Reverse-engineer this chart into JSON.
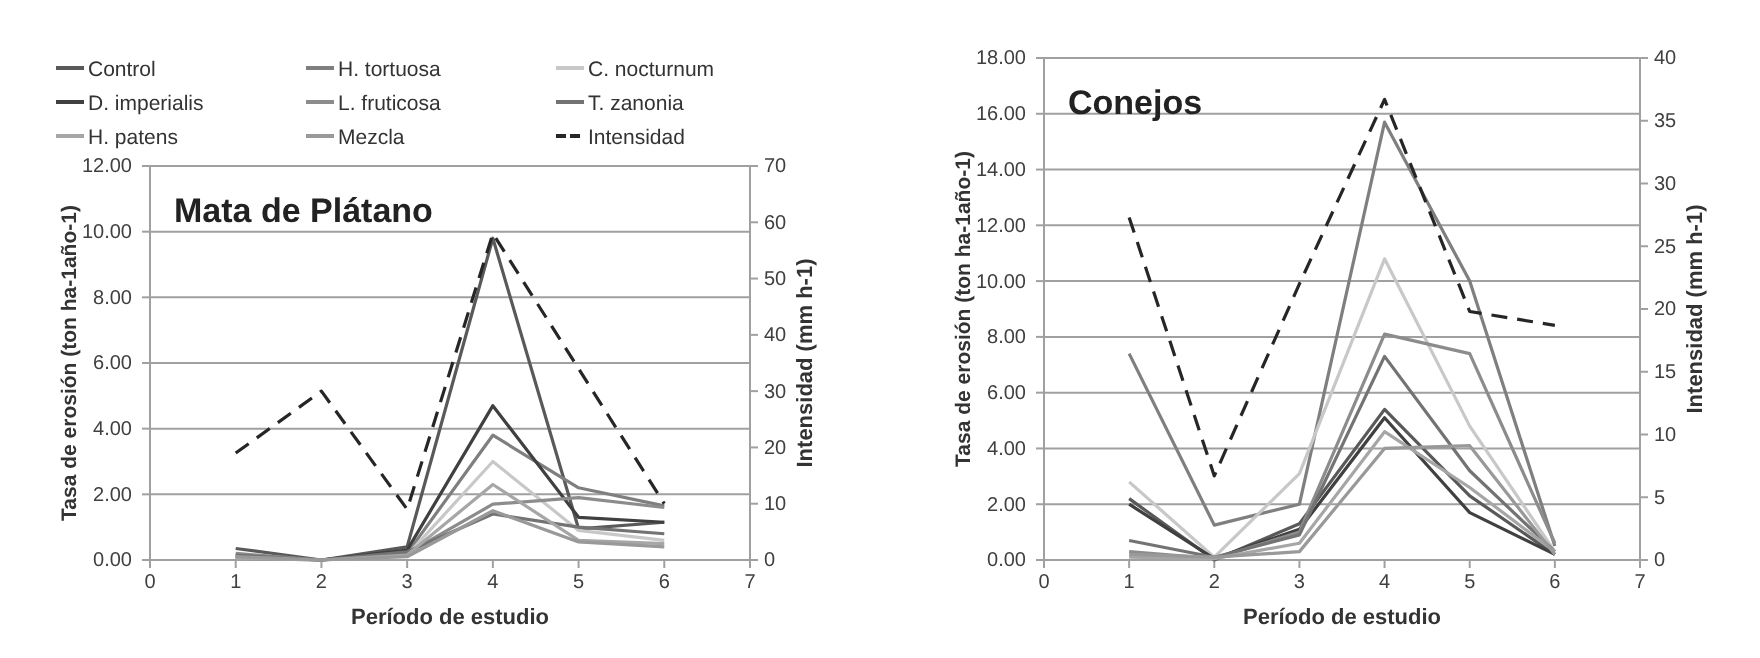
{
  "chart_data": [
    {
      "type": "line",
      "title": "Mata de Plátano",
      "xlabel": "Período de estudio",
      "ylabel": "Tasa de erosión (ton ha-1año-1)",
      "y2label": "Intensidad (mm h-1)",
      "x": [
        1,
        2,
        3,
        4,
        5,
        6
      ],
      "xlim": [
        0,
        7
      ],
      "xticks": [
        0,
        1,
        2,
        3,
        4,
        5,
        6,
        7
      ],
      "ylim": [
        0,
        12
      ],
      "yticks": [
        {
          "value": 0,
          "label": "0.00"
        },
        {
          "value": 2,
          "label": "2.00"
        },
        {
          "value": 4,
          "label": "4.00"
        },
        {
          "value": 6,
          "label": "6.00"
        },
        {
          "value": 8,
          "label": "8.00"
        },
        {
          "value": 10,
          "label": "10.00"
        },
        {
          "value": 12,
          "label": "12.00"
        }
      ],
      "y2lim": [
        0,
        70
      ],
      "y2ticks": [
        0,
        10,
        20,
        30,
        40,
        50,
        60,
        70
      ],
      "grid": "y",
      "legend": "top",
      "marker": "none",
      "series": [
        {
          "name": "Control",
          "color": "#595959",
          "values": [
            0.35,
            0,
            0.4,
            9.8,
            0.95,
            1.15
          ]
        },
        {
          "name": "H. tortuosa",
          "color": "#7f7f7f",
          "values": [
            0.05,
            0,
            0.2,
            3.8,
            2.2,
            1.65
          ]
        },
        {
          "name": "C. nocturnum",
          "color": "#c8c8c8",
          "values": [
            0.1,
            0,
            0.15,
            3.0,
            0.9,
            0.6
          ]
        },
        {
          "name": "D. imperialis",
          "color": "#404040",
          "values": [
            0.1,
            0,
            0.3,
            4.7,
            1.3,
            1.15
          ]
        },
        {
          "name": "L. fruticosa",
          "color": "#8c8c8c",
          "values": [
            0.2,
            0,
            0.2,
            1.7,
            1.9,
            1.6
          ]
        },
        {
          "name": "T. zanonia",
          "color": "#737373",
          "values": [
            0.15,
            0,
            0.25,
            1.4,
            1.0,
            0.8
          ]
        },
        {
          "name": "H. patens",
          "color": "#a6a6a6",
          "values": [
            0.05,
            0,
            0.15,
            2.3,
            0.6,
            0.5
          ]
        },
        {
          "name": "Mezcla",
          "color": "#999999",
          "values": [
            0.1,
            0,
            0.1,
            1.5,
            0.55,
            0.4
          ]
        },
        {
          "name": "Intensidad",
          "color": "#262626",
          "axis": "y2",
          "line_style": "dashed",
          "values": [
            19,
            30,
            9,
            58,
            34,
            10
          ]
        }
      ]
    },
    {
      "type": "line",
      "title": "Conejos",
      "xlabel": "Período de estudio",
      "ylabel": "Tasa de erosión (ton ha-1año-1)",
      "y2label": "Intensidad (mm h-1)",
      "x": [
        1,
        2,
        3,
        4,
        5,
        6
      ],
      "xlim": [
        0,
        7
      ],
      "xticks": [
        0,
        1,
        2,
        3,
        4,
        5,
        6,
        7
      ],
      "ylim": [
        0,
        18
      ],
      "yticks": [
        {
          "value": 0,
          "label": "0.00"
        },
        {
          "value": 2,
          "label": "2.00"
        },
        {
          "value": 4,
          "label": "4.00"
        },
        {
          "value": 6,
          "label": "6.00"
        },
        {
          "value": 8,
          "label": "8.00"
        },
        {
          "value": 10,
          "label": "10.00"
        },
        {
          "value": 12,
          "label": "12.00"
        },
        {
          "value": 14,
          "label": "14.00"
        },
        {
          "value": 16,
          "label": "16.00"
        },
        {
          "value": 18,
          "label": "18.00"
        }
      ],
      "y2lim": [
        0,
        40
      ],
      "y2ticks": [
        0,
        5,
        10,
        15,
        20,
        25,
        30,
        35,
        40
      ],
      "grid": "y",
      "marker": "none",
      "series": [
        {
          "color": "#595959",
          "values": [
            2.2,
            0.0,
            1.3,
            5.4,
            2.3,
            0.2
          ]
        },
        {
          "color": "#7f7f7f",
          "values": [
            7.4,
            1.25,
            2.0,
            15.7,
            10.0,
            0.5
          ]
        },
        {
          "color": "#c8c8c8",
          "values": [
            2.8,
            0.1,
            3.1,
            10.8,
            4.8,
            0.3
          ]
        },
        {
          "color": "#404040",
          "values": [
            2.0,
            0.05,
            1.1,
            5.1,
            1.7,
            0.2
          ]
        },
        {
          "color": "#8c8c8c",
          "values": [
            0.3,
            0.05,
            1.0,
            8.1,
            7.4,
            0.6
          ]
        },
        {
          "color": "#737373",
          "values": [
            0.7,
            0.1,
            0.9,
            7.3,
            3.2,
            0.3
          ]
        },
        {
          "color": "#a6a6a6",
          "values": [
            0.1,
            0.05,
            0.6,
            4.6,
            2.6,
            0.3
          ]
        },
        {
          "color": "#999999",
          "values": [
            0.2,
            0.1,
            0.3,
            4.0,
            4.1,
            0.2
          ]
        },
        {
          "color": "#262626",
          "axis": "y2",
          "line_style": "dashed",
          "values": [
            27.3,
            6.7,
            22,
            36.7,
            19.8,
            18.7
          ]
        }
      ]
    }
  ]
}
